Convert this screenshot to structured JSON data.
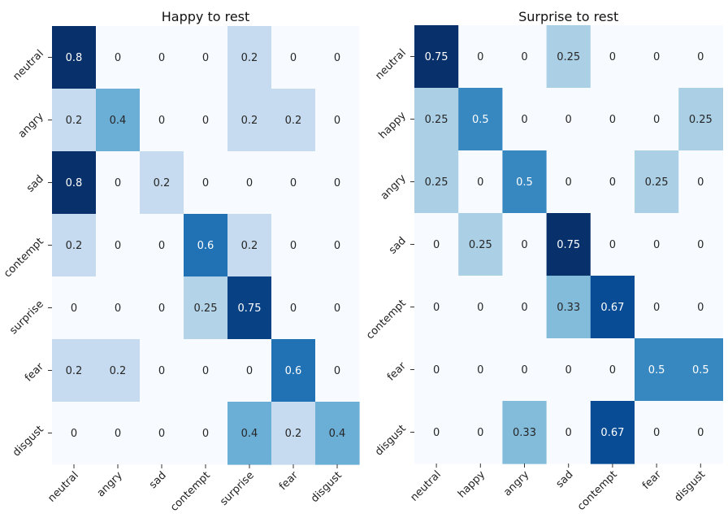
{
  "chart_data": [
    {
      "type": "heatmap",
      "title": "Happy to rest",
      "xlabel": "",
      "ylabel": "",
      "x_categories": [
        "neutral",
        "angry",
        "sad",
        "contempt",
        "surprise",
        "fear",
        "disgust"
      ],
      "y_categories": [
        "neutral",
        "angry",
        "sad",
        "contempt",
        "surprise",
        "fear",
        "disgust"
      ],
      "values": [
        [
          0.8,
          0,
          0,
          0,
          0.2,
          0,
          0
        ],
        [
          0.2,
          0.4,
          0,
          0,
          0.2,
          0.2,
          0
        ],
        [
          0.8,
          0,
          0.2,
          0,
          0,
          0,
          0
        ],
        [
          0.2,
          0,
          0,
          0.6,
          0.2,
          0,
          0
        ],
        [
          0,
          0,
          0,
          0.25,
          0.75,
          0,
          0
        ],
        [
          0.2,
          0.2,
          0,
          0,
          0,
          0.6,
          0
        ],
        [
          0,
          0,
          0,
          0,
          0.4,
          0.2,
          0.4
        ]
      ],
      "vmax": 0.8
    },
    {
      "type": "heatmap",
      "title": "Surprise to rest",
      "xlabel": "",
      "ylabel": "",
      "x_categories": [
        "neutral",
        "happy",
        "angry",
        "sad",
        "contempt",
        "fear",
        "disgust"
      ],
      "y_categories": [
        "neutral",
        "happy",
        "angry",
        "sad",
        "contempt",
        "fear",
        "disgust"
      ],
      "values": [
        [
          0.75,
          0,
          0,
          0.25,
          0,
          0,
          0
        ],
        [
          0.25,
          0.5,
          0,
          0,
          0,
          0,
          0.25
        ],
        [
          0.25,
          0,
          0.5,
          0,
          0,
          0.25,
          0
        ],
        [
          0,
          0.25,
          0,
          0.75,
          0,
          0,
          0
        ],
        [
          0,
          0,
          0,
          0.33,
          0.67,
          0,
          0
        ],
        [
          0,
          0,
          0,
          0,
          0,
          0.5,
          0.5
        ],
        [
          0,
          0,
          0.33,
          0,
          0.67,
          0,
          0
        ]
      ],
      "vmax": 0.75
    }
  ],
  "colormap": "Blues"
}
